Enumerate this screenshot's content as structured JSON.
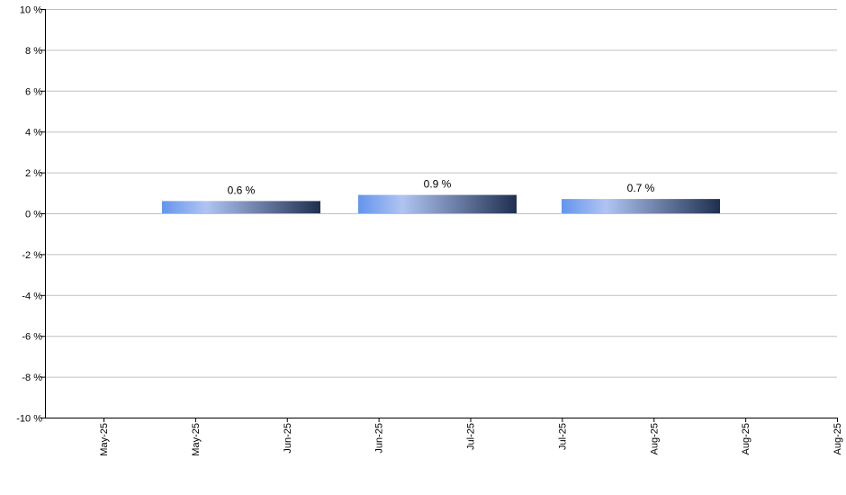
{
  "chart_data": {
    "type": "bar",
    "title": "",
    "xlabel": "",
    "ylabel": "",
    "ylim": [
      -10,
      10
    ],
    "yticks": [
      10,
      8,
      6,
      4,
      2,
      0,
      -2,
      -4,
      -6,
      -8,
      -10
    ],
    "ytick_suffix": " %",
    "xticks": [
      "May-25",
      "May-25",
      "Jun-25",
      "Jun-25",
      "Jul-25",
      "Jul-25",
      "Aug-25",
      "Aug-25",
      "Aug-25"
    ],
    "bars": [
      {
        "value": 0.6,
        "label": "0.6 %"
      },
      {
        "value": 0.9,
        "label": "0.9 %"
      },
      {
        "value": 0.7,
        "label": "0.7 %"
      }
    ],
    "grid": true,
    "legend": "none",
    "colors": {
      "bar_start": "#6495ed",
      "bar_mid": "#b0c4f2",
      "bar_end": "#1e2f50",
      "grid": "#c0c0c0",
      "axis": "#000000"
    }
  }
}
